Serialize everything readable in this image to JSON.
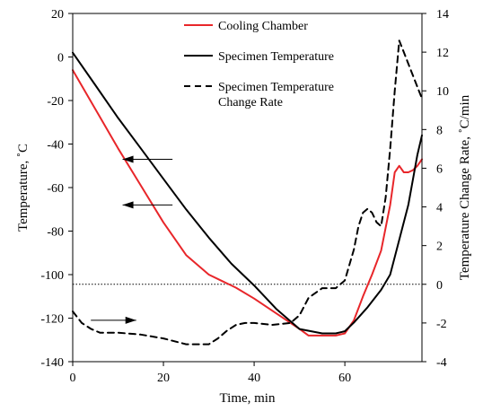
{
  "chart_data": {
    "type": "line",
    "xlabel": "Time, min",
    "ylabel_left": "Temperature, ˚C",
    "ylabel_right": "Temperature Change Rate, ˚C/min",
    "xlim": [
      0,
      77
    ],
    "ylim_left": [
      -140,
      20
    ],
    "ylim_right": [
      -4,
      14
    ],
    "x_ticks": [
      0,
      20,
      40,
      60
    ],
    "y_left_ticks": [
      -140,
      -120,
      -100,
      -80,
      -60,
      -40,
      -20,
      0,
      20
    ],
    "y_right_ticks": [
      -4,
      -2,
      0,
      2,
      4,
      6,
      8,
      10,
      12,
      14
    ],
    "grid": false,
    "legend_position": "top-center",
    "reference_line": {
      "axis": "right",
      "y": 0,
      "style": "dotted"
    },
    "series": [
      {
        "name": "Cooling Chamber",
        "axis": "left",
        "color": "#e8262a",
        "style": "solid",
        "x": [
          0,
          5,
          10,
          15,
          20,
          25,
          30,
          33,
          36,
          40,
          45,
          50,
          52,
          55,
          58,
          60,
          62,
          64,
          66,
          68,
          70,
          71,
          72,
          73,
          74,
          75,
          76,
          77
        ],
        "y": [
          -6,
          -24,
          -42,
          -59,
          -76,
          -91,
          -100,
          -103,
          -106,
          -111,
          -118,
          -125,
          -128,
          -128,
          -128,
          -127,
          -121,
          -110,
          -100,
          -89,
          -68,
          -53,
          -50,
          -53,
          -53,
          -52,
          -50,
          -47
        ]
      },
      {
        "name": "Specimen Temperature",
        "axis": "left",
        "color": "#000000",
        "style": "solid",
        "x": [
          0,
          5,
          10,
          15,
          20,
          25,
          30,
          35,
          40,
          45,
          50,
          55,
          58,
          60,
          62,
          65,
          68,
          70,
          72,
          74,
          76,
          77
        ],
        "y": [
          2,
          -13,
          -28,
          -42,
          -56,
          -70,
          -83,
          -95,
          -105,
          -116,
          -125,
          -127,
          -127,
          -126,
          -122,
          -115,
          -107,
          -100,
          -84,
          -68,
          -45,
          -36
        ]
      },
      {
        "name": "Specimen Temperature Change Rate",
        "axis": "right",
        "color": "#000000",
        "style": "dashed",
        "x": [
          0,
          2,
          4,
          6,
          10,
          15,
          20,
          25,
          30,
          32,
          34,
          36,
          38,
          40,
          44,
          48,
          50,
          52,
          55,
          58,
          60,
          62,
          63,
          64,
          65,
          66,
          67,
          68,
          69,
          70,
          71,
          72,
          73,
          74,
          75,
          76,
          77
        ],
        "y": [
          -1.4,
          -2.0,
          -2.3,
          -2.5,
          -2.5,
          -2.6,
          -2.8,
          -3.1,
          -3.1,
          -2.8,
          -2.4,
          -2.1,
          -2.0,
          -2.0,
          -2.1,
          -2.0,
          -1.6,
          -0.7,
          -0.2,
          -0.2,
          0.2,
          1.8,
          3.0,
          3.7,
          3.9,
          3.7,
          3.2,
          3.0,
          4.5,
          7.0,
          10.0,
          12.6,
          12.0,
          11.4,
          10.8,
          10.2,
          9.6
        ]
      }
    ],
    "annotations": [
      {
        "type": "arrow",
        "from": [
          22,
          -47
        ],
        "to": [
          11,
          -47
        ],
        "direction": "points-left"
      },
      {
        "type": "arrow",
        "from": [
          22,
          -68
        ],
        "to": [
          11,
          -68
        ],
        "direction": "points-left"
      },
      {
        "type": "arrow",
        "from": [
          4,
          -121
        ],
        "to": [
          14,
          -121
        ],
        "direction": "points-right"
      }
    ]
  }
}
